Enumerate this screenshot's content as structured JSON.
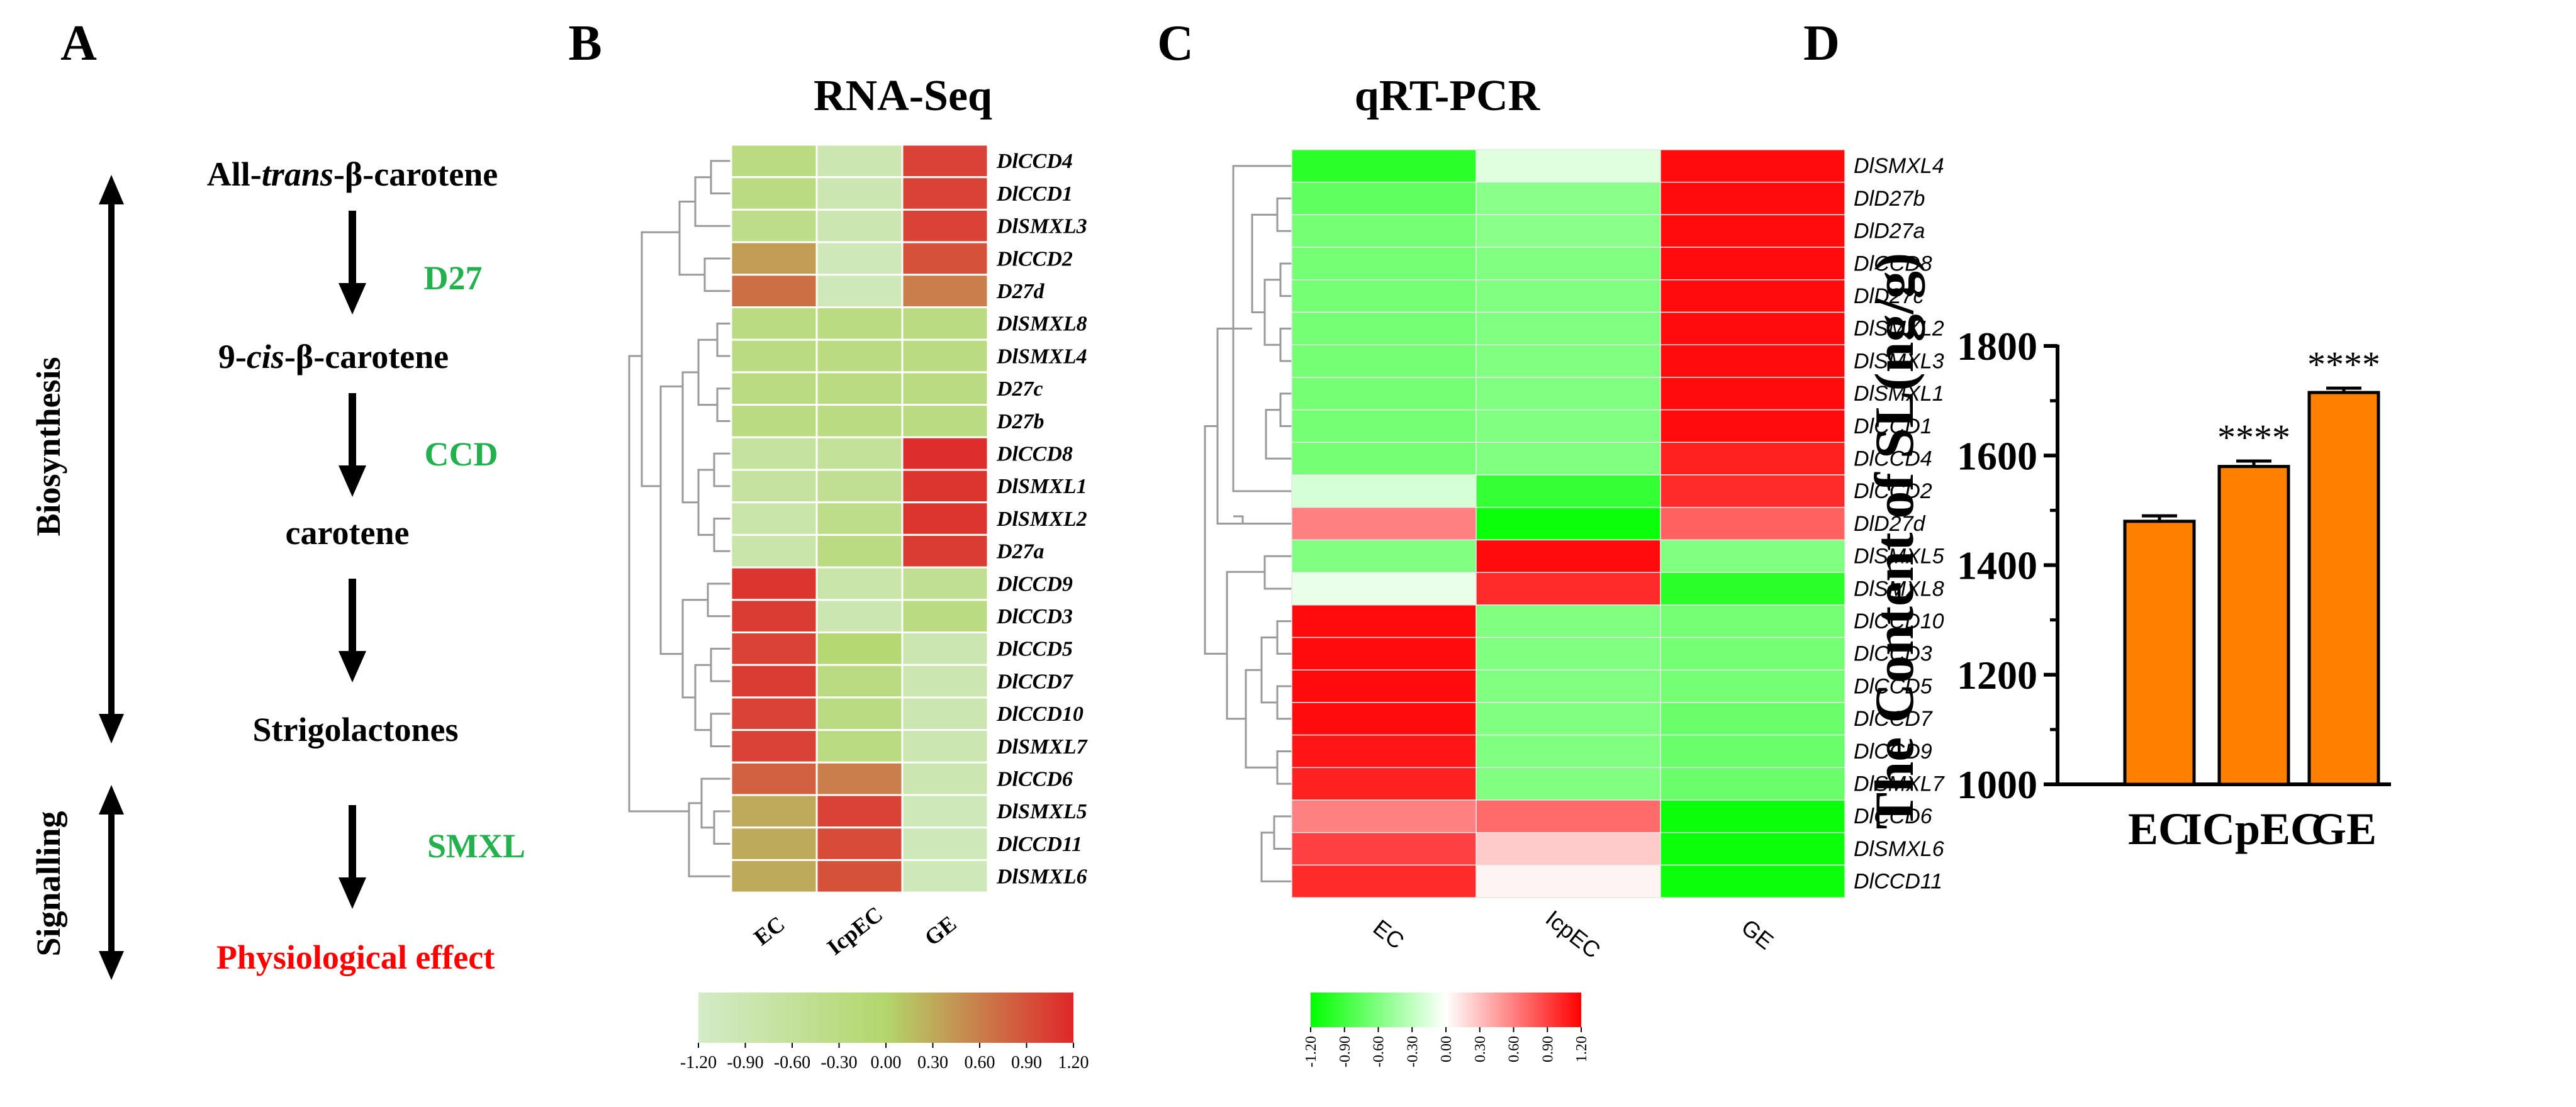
{
  "panels": {
    "a": "A",
    "b": "B",
    "c": "C",
    "d": "D"
  },
  "colors": {
    "green_enzyme": "#22b14c",
    "red_effect": "#ff0000",
    "bar_fill": "#ff8000",
    "heat_b_low": "#d4ebc8",
    "heat_b_mid": "#b3d66b",
    "heat_b_high": "#e0262a",
    "heat_c_low": "#00ff00",
    "heat_c_mid": "#ffffff",
    "heat_c_high": "#ff0000"
  },
  "pathway": {
    "node_prefix_all": "All-",
    "node_italic_trans": "trans",
    "node_suffix_all": "-β-carotene",
    "node_prefix_9": "9-",
    "node_italic_cis": "cis",
    "node_suffix_9": "-β-carotene",
    "node_carotene": "carotene",
    "node_strigolactones": "Strigolactones",
    "node_effect": "Physiological effect",
    "enzyme_d27": "D27",
    "enzyme_ccd": "CCD",
    "enzyme_smxl": "SMXL",
    "label_biosynthesis": "Biosynthesis",
    "label_signalling": "Signalling"
  },
  "chart_data": [
    {
      "type": "heatmap",
      "title": "RNA-Seq",
      "columns": [
        "EC",
        "IcpEC",
        "GE"
      ],
      "rows": [
        "DlCCD4",
        "DlCCD1",
        "DlSMXL3",
        "DlCCD2",
        "D27d",
        "DlSMXL8",
        "DlSMXL4",
        "D27c",
        "D27b",
        "DlCCD8",
        "DlSMXL1",
        "DlSMXL2",
        "D27a",
        "DlCCD9",
        "DlCCD3",
        "DlCCD5",
        "DlCCD7",
        "DlCCD10",
        "DlSMXL7",
        "DlCCD6",
        "DlSMXL5",
        "DlCCD11",
        "DlSMXL6"
      ],
      "values": [
        [
          -0.3,
          -0.9,
          1.0
        ],
        [
          -0.3,
          -0.9,
          1.0
        ],
        [
          -0.4,
          -0.9,
          1.0
        ],
        [
          0.4,
          -1.0,
          0.9
        ],
        [
          0.7,
          -1.0,
          0.6
        ],
        [
          -0.3,
          -0.3,
          -0.3
        ],
        [
          -0.3,
          -0.3,
          -0.3
        ],
        [
          -0.3,
          -0.3,
          -0.3
        ],
        [
          -0.3,
          -0.3,
          -0.3
        ],
        [
          -0.7,
          -0.6,
          1.15
        ],
        [
          -0.7,
          -0.5,
          1.1
        ],
        [
          -0.8,
          -0.4,
          1.1
        ],
        [
          -0.8,
          -0.3,
          1.05
        ],
        [
          1.1,
          -0.8,
          -0.5
        ],
        [
          1.05,
          -0.9,
          -0.3
        ],
        [
          1.0,
          -0.1,
          -0.9
        ],
        [
          1.05,
          -0.3,
          -0.9
        ],
        [
          1.0,
          -0.3,
          -0.9
        ],
        [
          1.0,
          -0.3,
          -0.9
        ],
        [
          0.8,
          0.6,
          -0.9
        ],
        [
          0.3,
          1.0,
          -1.0
        ],
        [
          0.3,
          0.95,
          -1.0
        ],
        [
          0.3,
          0.9,
          -1.0
        ]
      ],
      "colorbar": {
        "min": -1.2,
        "max": 1.2,
        "ticks": [
          "-1.20",
          "-0.90",
          "-0.60",
          "-0.30",
          "0.00",
          "0.30",
          "0.60",
          "0.90",
          "1.20"
        ]
      }
    },
    {
      "type": "heatmap",
      "title": "qRT-PCR",
      "columns": [
        "EC",
        "IcpEC",
        "GE"
      ],
      "rows": [
        "DlSMXL4",
        "DlD27b",
        "DlD27a",
        "DlCCD8",
        "DlD27c",
        "DlSMXL2",
        "DlSMXL3",
        "DlSMXL1",
        "DlCCD1",
        "DlCCD4",
        "DlCCD2",
        "DlD27d",
        "DlSMXL5",
        "DlSMXL8",
        "DlCCD10",
        "DlCCD3",
        "DlCCD5",
        "DlCCD7",
        "DlCCD9",
        "DlSMXL7",
        "DlCCD6",
        "DlSMXL6",
        "DlCCD11"
      ],
      "values": [
        [
          -1.0,
          -0.15,
          1.15
        ],
        [
          -0.75,
          -0.55,
          1.15
        ],
        [
          -0.65,
          -0.55,
          1.15
        ],
        [
          -0.65,
          -0.6,
          1.15
        ],
        [
          -0.65,
          -0.6,
          1.15
        ],
        [
          -0.65,
          -0.6,
          1.15
        ],
        [
          -0.65,
          -0.6,
          1.15
        ],
        [
          -0.65,
          -0.6,
          1.15
        ],
        [
          -0.65,
          -0.6,
          1.15
        ],
        [
          -0.65,
          -0.6,
          1.05
        ],
        [
          -0.2,
          -0.95,
          1.0
        ],
        [
          0.6,
          -1.15,
          0.75
        ],
        [
          -0.6,
          1.15,
          -0.6
        ],
        [
          -0.1,
          1.0,
          -1.0
        ],
        [
          1.15,
          -0.6,
          -0.65
        ],
        [
          1.15,
          -0.6,
          -0.65
        ],
        [
          1.15,
          -0.6,
          -0.65
        ],
        [
          1.15,
          -0.6,
          -0.7
        ],
        [
          1.1,
          -0.6,
          -0.7
        ],
        [
          1.05,
          -0.6,
          -0.7
        ],
        [
          0.6,
          0.7,
          -1.15
        ],
        [
          0.9,
          0.25,
          -1.15
        ],
        [
          1.0,
          0.05,
          -1.15
        ]
      ],
      "colorbar": {
        "min": -1.2,
        "max": 1.2,
        "ticks": [
          "-1.20",
          "-0.90",
          "-0.60",
          "-0.30",
          "0.00",
          "0.30",
          "0.60",
          "0.90",
          "1.20"
        ]
      }
    },
    {
      "type": "bar",
      "categories": [
        "EC",
        "ICpEC",
        "GE"
      ],
      "values": [
        1480,
        1580,
        1715
      ],
      "errors": [
        10,
        10,
        8
      ],
      "annotations": [
        "",
        "****",
        "****"
      ],
      "ylabel": "The Content of SL(ng/g)",
      "ylim": [
        1000,
        1800
      ],
      "yticks": [
        "1000",
        "1200",
        "1400",
        "1600",
        "1800"
      ]
    }
  ]
}
